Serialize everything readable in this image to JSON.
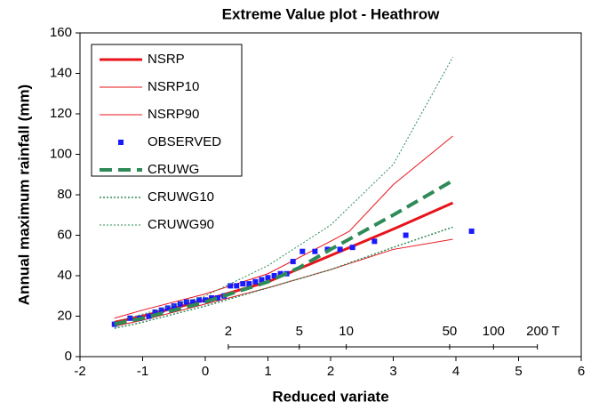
{
  "chart_data": {
    "type": "line",
    "title": "Extreme Value plot - Heathrow",
    "xlabel": "Reduced variate",
    "ylabel": "Annual maximum rainfall (mm)",
    "xlim": [
      -2,
      6
    ],
    "xticks": [
      -2,
      -1,
      0,
      1,
      2,
      3,
      4,
      5,
      6
    ],
    "ylim": [
      0,
      160
    ],
    "yticks": [
      0,
      20,
      40,
      60,
      80,
      100,
      120,
      140,
      160
    ],
    "rp_ticks": [
      {
        "value": 0.367,
        "label": "2"
      },
      {
        "value": 1.5,
        "label": "5"
      },
      {
        "value": 2.25,
        "label": "10"
      },
      {
        "value": 3.9,
        "label": "50"
      },
      {
        "value": 4.6,
        "label": "100"
      },
      {
        "value": 5.3,
        "label": "200"
      }
    ],
    "rp_unit": "T",
    "legend": "upper left",
    "series": [
      {
        "name": "NSRP",
        "color": "#e8141b",
        "style": "solid",
        "width": 3,
        "x": [
          -1.45,
          -1,
          0,
          1,
          2,
          3,
          3.95
        ],
        "values": [
          17,
          20,
          28,
          37,
          50,
          63,
          76
        ]
      },
      {
        "name": "NSRP10",
        "color": "#e8141b",
        "style": "solid",
        "width": 1,
        "x": [
          -1.45,
          -1,
          0,
          1,
          2,
          3,
          3.95
        ],
        "values": [
          15,
          18,
          26,
          34,
          43,
          53,
          58
        ]
      },
      {
        "name": "NSRP90",
        "color": "#e8141b",
        "style": "solid",
        "width": 1,
        "x": [
          -1.45,
          -1,
          0,
          1,
          2,
          2.3,
          3,
          3.95
        ],
        "values": [
          19,
          23,
          31,
          41,
          57,
          62,
          85,
          109
        ]
      },
      {
        "name": "OBSERVED",
        "color": "#1a1aff",
        "style": "markers",
        "width": 0,
        "x": [
          -1.45,
          -1.2,
          -1.05,
          -0.9,
          -0.8,
          -0.7,
          -0.6,
          -0.5,
          -0.4,
          -0.3,
          -0.2,
          -0.1,
          0,
          0.1,
          0.2,
          0.3,
          0.4,
          0.5,
          0.6,
          0.7,
          0.8,
          0.9,
          1.0,
          1.1,
          1.2,
          1.3,
          1.4,
          1.55,
          1.75,
          1.95,
          2.15,
          2.35,
          2.7,
          3.2,
          4.25
        ],
        "values": [
          16,
          19,
          19,
          20,
          22,
          23,
          24,
          25,
          26,
          27,
          27,
          28,
          28,
          29,
          29,
          30,
          35,
          35,
          36,
          36,
          37,
          38,
          39,
          40,
          41,
          41,
          47,
          52,
          52,
          53,
          53,
          54,
          57,
          60,
          62
        ]
      },
      {
        "name": "CRUWG",
        "color": "#2e8b57",
        "style": "dashed",
        "width": 4,
        "x": [
          -1.45,
          -1,
          0,
          1,
          1.5,
          2,
          3,
          3.95
        ],
        "values": [
          16,
          19,
          27,
          37,
          44,
          53,
          70,
          87
        ]
      },
      {
        "name": "CRUWG10",
        "color": "#2e8b57",
        "style": "dotted",
        "width": 1.5,
        "x": [
          -1.45,
          -1,
          0,
          1,
          2,
          3,
          3.95
        ],
        "values": [
          14,
          17,
          25,
          34,
          43,
          54,
          64
        ]
      },
      {
        "name": "CRUWG90",
        "color": "#2e8b57",
        "style": "dotted",
        "width": 1,
        "x": [
          -1.45,
          -1,
          0,
          1,
          2,
          3,
          3.95
        ],
        "values": [
          17,
          21,
          30,
          45,
          65,
          95,
          148
        ]
      }
    ]
  }
}
